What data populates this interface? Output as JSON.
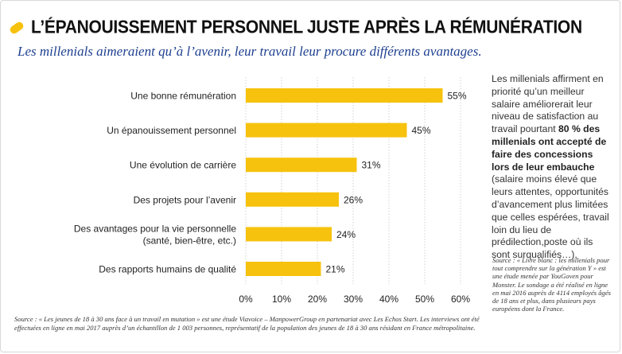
{
  "header": {
    "title": "L’ÉPANOUISSEMENT PERSONNEL JUSTE APRÈS LA RÉMUNÉRATION",
    "subtitle": "Les millenials aimeraient qu’à l’avenir, leur travail leur procure différents avantages."
  },
  "colors": {
    "bar": "#f7c20e",
    "accent": "#f7c20e",
    "subtitle": "#1d3f8f"
  },
  "icons": {
    "title_icon": "yellow-pill-icon"
  },
  "side_note": {
    "part1": "Les millenials affirment en priorité qu’un meilleur salaire améliorerait leur niveau de satisfaction au travail pourtant ",
    "bold": "80 % des millenials ont accepté de faire des concessions lors de leur embauche",
    "part2": " (salaire moins élevé que leurs attentes, opportunités d’avancement plus limitées que celles espérées, travail loin du lieu de prédilection,poste où ils sont surqualifiés…).",
    "source": "Source : « Livre blanc : les millenials pour tout comprendre sur la génération Y » est une étude menée par YouGoven pour Monster. Le sondage a été réalisé en ligne en mai 2016 auprès de 4114 employés âgés de 18 ans et plus, dans plusieurs pays européens dont la France."
  },
  "footer": {
    "source": "Source : « Les jeunes de 18 à 30 ans face à un travail en mutation » est une étude Viavoice – ManpowerGroup en partenariat avec Les Echos Start. Les interviews ont été effectuées en ligne en mai 2017 auprès d’un échantillon de 1 003 personnes, représentatif de la population des jeunes de 18 à 30 ans résidant en France métropolitaine."
  },
  "chart_data": {
    "type": "bar",
    "orientation": "horizontal",
    "categories": [
      [
        "Une bonne rémunération"
      ],
      [
        "Un épanouissement personnel"
      ],
      [
        "Une évolution de carrière"
      ],
      [
        "Des projets pour l’avenir"
      ],
      [
        "Des avantages pour la vie personnelle",
        "(santé, bien-être, etc.)"
      ],
      [
        "Des rapports humains de qualité"
      ]
    ],
    "values": [
      55,
      45,
      31,
      26,
      24,
      21
    ],
    "value_labels": [
      "55%",
      "45%",
      "31%",
      "26%",
      "24%",
      "21%"
    ],
    "xlim": [
      0,
      60
    ],
    "xticks": [
      0,
      10,
      20,
      30,
      40,
      50,
      60
    ],
    "xtick_labels": [
      "0%",
      "10%",
      "20%",
      "30%",
      "40%",
      "50%",
      "60%"
    ],
    "grid": true,
    "legend": "none"
  }
}
